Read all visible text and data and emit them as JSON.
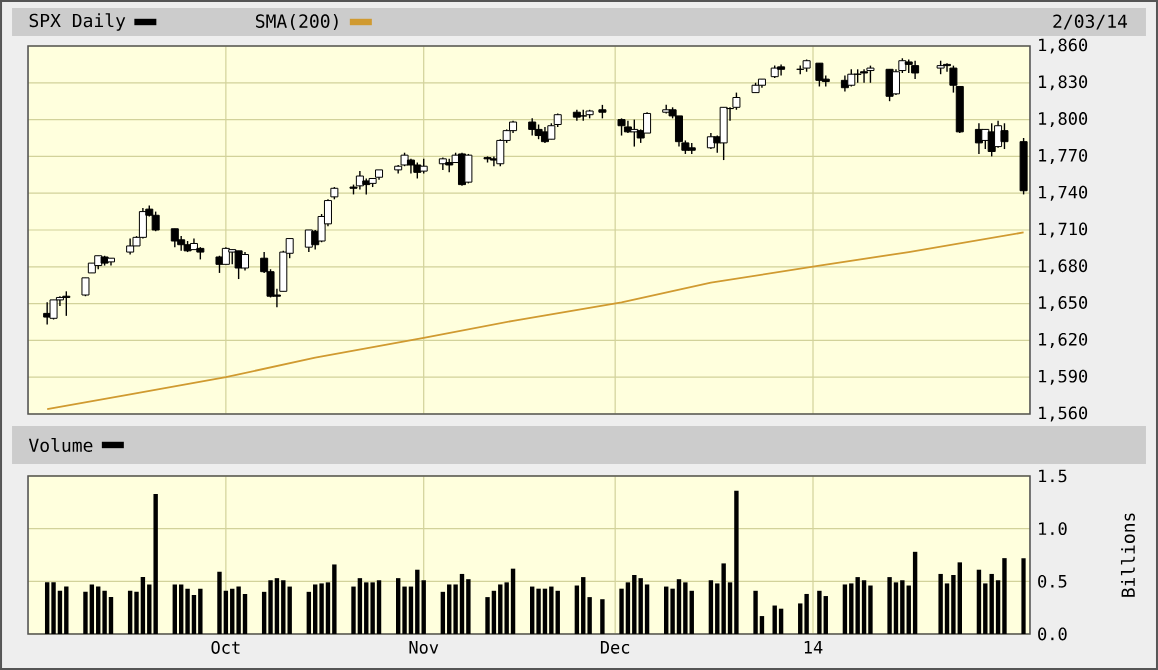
{
  "chart_data": [
    {
      "type": "candlestick",
      "xlim": [
        "2013-08-31",
        "2014-02-04"
      ],
      "ylim": [
        1560,
        1860
      ],
      "tick_labels": "y",
      "grid": true,
      "legend": "top left",
      "annotations": [
        "2/03/14"
      ],
      "xticks": [
        {
          "value": "2013-10-01",
          "label": null
        },
        {
          "value": "2013-11-01",
          "label": null
        },
        {
          "value": "2013-12-01",
          "label": null
        },
        {
          "value": "2014-01-01",
          "label": null
        }
      ],
      "yticks": [
        {
          "value": 1560,
          "label": "1,560"
        },
        {
          "value": 1590,
          "label": "1,590"
        },
        {
          "value": 1620,
          "label": "1,620"
        },
        {
          "value": 1650,
          "label": "1,650"
        },
        {
          "value": 1680,
          "label": "1,680"
        },
        {
          "value": 1710,
          "label": "1,710"
        },
        {
          "value": 1740,
          "label": "1,740"
        },
        {
          "value": 1770,
          "label": "1,770"
        },
        {
          "value": 1800,
          "label": "1,800"
        },
        {
          "value": 1830,
          "label": "1,830"
        },
        {
          "value": 1860,
          "label": "1,860"
        }
      ],
      "x": [
        "2013-09-03",
        "2013-09-04",
        "2013-09-05",
        "2013-09-06",
        "2013-09-09",
        "2013-09-10",
        "2013-09-11",
        "2013-09-12",
        "2013-09-13",
        "2013-09-16",
        "2013-09-17",
        "2013-09-18",
        "2013-09-19",
        "2013-09-20",
        "2013-09-23",
        "2013-09-24",
        "2013-09-25",
        "2013-09-26",
        "2013-09-27",
        "2013-09-30",
        "2013-10-01",
        "2013-10-02",
        "2013-10-03",
        "2013-10-04",
        "2013-10-07",
        "2013-10-08",
        "2013-10-09",
        "2013-10-10",
        "2013-10-11",
        "2013-10-14",
        "2013-10-15",
        "2013-10-16",
        "2013-10-17",
        "2013-10-18",
        "2013-10-21",
        "2013-10-22",
        "2013-10-23",
        "2013-10-24",
        "2013-10-25",
        "2013-10-28",
        "2013-10-29",
        "2013-10-30",
        "2013-10-31",
        "2013-11-01",
        "2013-11-04",
        "2013-11-05",
        "2013-11-06",
        "2013-11-07",
        "2013-11-08",
        "2013-11-11",
        "2013-11-12",
        "2013-11-13",
        "2013-11-14",
        "2013-11-15",
        "2013-11-18",
        "2013-11-19",
        "2013-11-20",
        "2013-11-21",
        "2013-11-22",
        "2013-11-25",
        "2013-11-26",
        "2013-11-27",
        "2013-11-29",
        "2013-12-02",
        "2013-12-03",
        "2013-12-04",
        "2013-12-05",
        "2013-12-06",
        "2013-12-09",
        "2013-12-10",
        "2013-12-11",
        "2013-12-12",
        "2013-12-13",
        "2013-12-16",
        "2013-12-17",
        "2013-12-18",
        "2013-12-19",
        "2013-12-20",
        "2013-12-23",
        "2013-12-24",
        "2013-12-26",
        "2013-12-27",
        "2013-12-30",
        "2013-12-31",
        "2014-01-02",
        "2014-01-03",
        "2014-01-06",
        "2014-01-07",
        "2014-01-08",
        "2014-01-09",
        "2014-01-10",
        "2014-01-13",
        "2014-01-14",
        "2014-01-15",
        "2014-01-16",
        "2014-01-17",
        "2014-01-21",
        "2014-01-22",
        "2014-01-23",
        "2014-01-24",
        "2014-01-27",
        "2014-01-28",
        "2014-01-29",
        "2014-01-30",
        "2014-01-31",
        "2014-02-03"
      ],
      "series": [
        {
          "name": "SPX Daily",
          "type": "candlestick",
          "color": "#000000",
          "ohlc": [
            [
              1642,
              1651,
              1633,
              1639
            ],
            [
              1638,
              1653,
              1637,
              1653
            ],
            [
              1653,
              1656,
              1648,
              1655
            ],
            [
              1656,
              1660,
              1640,
              1655
            ],
            [
              1657,
              1671,
              1656,
              1671
            ],
            [
              1675,
              1683,
              1675,
              1683
            ],
            [
              1681,
              1689,
              1678,
              1689
            ],
            [
              1688,
              1689,
              1681,
              1683
            ],
            [
              1684,
              1687,
              1681,
              1687
            ],
            [
              1692,
              1703,
              1690,
              1697
            ],
            [
              1697,
              1705,
              1697,
              1704
            ],
            [
              1704,
              1728,
              1703,
              1725
            ],
            [
              1727,
              1730,
              1721,
              1722
            ],
            [
              1722,
              1725,
              1709,
              1710
            ],
            [
              1711,
              1711,
              1696,
              1701
            ],
            [
              1702,
              1705,
              1693,
              1698
            ],
            [
              1698,
              1701,
              1692,
              1693
            ],
            [
              1694,
              1703,
              1694,
              1699
            ],
            [
              1695,
              1696,
              1686,
              1692
            ],
            [
              1688,
              1689,
              1675,
              1682
            ],
            [
              1682,
              1696,
              1682,
              1695
            ],
            [
              1692,
              1694,
              1682,
              1694
            ],
            [
              1693,
              1693,
              1670,
              1679
            ],
            [
              1679,
              1692,
              1677,
              1690
            ],
            [
              1687,
              1692,
              1675,
              1676
            ],
            [
              1676,
              1678,
              1655,
              1656
            ],
            [
              1657,
              1662,
              1647,
              1656
            ],
            [
              1660,
              1693,
              1660,
              1692
            ],
            [
              1691,
              1703,
              1687,
              1703
            ],
            [
              1696,
              1710,
              1692,
              1710
            ],
            [
              1709,
              1710,
              1694,
              1698
            ],
            [
              1701,
              1723,
              1700,
              1721
            ],
            [
              1715,
              1735,
              1713,
              1734
            ],
            [
              1737,
              1745,
              1735,
              1744
            ],
            [
              1745,
              1747,
              1739,
              1744
            ],
            [
              1746,
              1758,
              1743,
              1754
            ],
            [
              1750,
              1752,
              1739,
              1747
            ],
            [
              1748,
              1752,
              1745,
              1752
            ],
            [
              1753,
              1759,
              1751,
              1759
            ],
            [
              1759,
              1763,
              1756,
              1762
            ],
            [
              1763,
              1773,
              1762,
              1771
            ],
            [
              1767,
              1768,
              1756,
              1763
            ],
            [
              1763,
              1765,
              1752,
              1757
            ],
            [
              1758,
              1768,
              1756,
              1762
            ],
            [
              1764,
              1769,
              1759,
              1768
            ],
            [
              1765,
              1768,
              1757,
              1763
            ],
            [
              1765,
              1773,
              1765,
              1771
            ],
            [
              1772,
              1773,
              1746,
              1747
            ],
            [
              1749,
              1772,
              1748,
              1771
            ],
            [
              1769,
              1770,
              1765,
              1768
            ],
            [
              1768,
              1770,
              1762,
              1767
            ],
            [
              1764,
              1784,
              1762,
              1783
            ],
            [
              1783,
              1792,
              1781,
              1791
            ],
            [
              1791,
              1799,
              1789,
              1798
            ],
            [
              1798,
              1801,
              1787,
              1792
            ],
            [
              1792,
              1796,
              1784,
              1787
            ],
            [
              1790,
              1794,
              1781,
              1782
            ],
            [
              1784,
              1797,
              1784,
              1795
            ],
            [
              1796,
              1805,
              1794,
              1804
            ],
            [
              1806,
              1808,
              1799,
              1802
            ],
            [
              1803,
              1808,
              1799,
              1803
            ],
            [
              1804,
              1808,
              1801,
              1807
            ],
            [
              1808,
              1812,
              1801,
              1806
            ],
            [
              1800,
              1801,
              1787,
              1795
            ],
            [
              1794,
              1799,
              1789,
              1790
            ],
            [
              1790,
              1800,
              1778,
              1792
            ],
            [
              1791,
              1792,
              1781,
              1785
            ],
            [
              1789,
              1806,
              1789,
              1805
            ],
            [
              1806,
              1812,
              1805,
              1808
            ],
            [
              1808,
              1810,
              1801,
              1803
            ],
            [
              1803,
              1803,
              1778,
              1782
            ],
            [
              1781,
              1783,
              1772,
              1775
            ],
            [
              1777,
              1781,
              1772,
              1775
            ],
            [
              1777,
              1789,
              1776,
              1786
            ],
            [
              1786,
              1787,
              1773,
              1781
            ],
            [
              1781,
              1810,
              1767,
              1810
            ],
            [
              1809,
              1810,
              1799,
              1809
            ],
            [
              1810,
              1822,
              1808,
              1818
            ],
            [
              1822,
              1830,
              1822,
              1828
            ],
            [
              1828,
              1833,
              1826,
              1833
            ],
            [
              1835,
              1844,
              1834,
              1842
            ],
            [
              1843,
              1845,
              1836,
              1841
            ],
            [
              1841,
              1844,
              1837,
              1841
            ],
            [
              1842,
              1849,
              1839,
              1848
            ],
            [
              1846,
              1846,
              1827,
              1832
            ],
            [
              1833,
              1836,
              1827,
              1831
            ],
            [
              1832,
              1836,
              1823,
              1826
            ],
            [
              1828,
              1841,
              1827,
              1837
            ],
            [
              1837,
              1841,
              1830,
              1837
            ],
            [
              1839,
              1841,
              1830,
              1838
            ],
            [
              1840,
              1844,
              1830,
              1842
            ],
            [
              1841,
              1841,
              1815,
              1819
            ],
            [
              1821,
              1841,
              1820,
              1839
            ],
            [
              1840,
              1850,
              1838,
              1848
            ],
            [
              1847,
              1849,
              1838,
              1845
            ],
            [
              1844,
              1848,
              1833,
              1838
            ],
            [
              1842,
              1848,
              1837,
              1844
            ],
            [
              1845,
              1846,
              1839,
              1844
            ],
            [
              1842,
              1844,
              1822,
              1828
            ],
            [
              1827,
              1827,
              1789,
              1790
            ],
            [
              1792,
              1797,
              1772,
              1781
            ],
            [
              1783,
              1792,
              1776,
              1792
            ],
            [
              1790,
              1797,
              1770,
              1774
            ],
            [
              1778,
              1799,
              1777,
              1795
            ],
            [
              1791,
              1797,
              1776,
              1782
            ],
            [
              1782,
              1785,
              1739,
              1742
            ]
          ]
        },
        {
          "name": "SMA(200)",
          "type": "line",
          "color": "#d09a30",
          "x": [
            "2013-09-03",
            "2013-09-16",
            "2013-10-01",
            "2013-10-15",
            "2013-11-01",
            "2013-11-15",
            "2013-12-02",
            "2013-12-16",
            "2014-01-02",
            "2014-01-16",
            "2014-02-03"
          ],
          "values": [
            1564,
            1576,
            1590,
            1606,
            1622,
            1636,
            1651,
            1667,
            1681,
            1692,
            1708
          ]
        }
      ]
    },
    {
      "type": "bar",
      "xlim": [
        "2013-08-31",
        "2014-02-04"
      ],
      "ylim": [
        0,
        1.5
      ],
      "ylabel": "Billions",
      "grid": true,
      "legend": "top left",
      "xticks": [
        {
          "value": "2013-10-01",
          "label": "Oct"
        },
        {
          "value": "2013-11-01",
          "label": "Nov"
        },
        {
          "value": "2013-12-01",
          "label": "Dec"
        },
        {
          "value": "2014-01-01",
          "label": "14"
        }
      ],
      "yticks": [
        {
          "value": 0,
          "label": "0.0"
        },
        {
          "value": 0.5,
          "label": "0.5"
        },
        {
          "value": 1,
          "label": "1.0"
        },
        {
          "value": 1.5,
          "label": "1.5"
        }
      ],
      "x": [
        "2013-09-03",
        "2013-09-04",
        "2013-09-05",
        "2013-09-06",
        "2013-09-09",
        "2013-09-10",
        "2013-09-11",
        "2013-09-12",
        "2013-09-13",
        "2013-09-16",
        "2013-09-17",
        "2013-09-18",
        "2013-09-19",
        "2013-09-20",
        "2013-09-23",
        "2013-09-24",
        "2013-09-25",
        "2013-09-26",
        "2013-09-27",
        "2013-09-30",
        "2013-10-01",
        "2013-10-02",
        "2013-10-03",
        "2013-10-04",
        "2013-10-07",
        "2013-10-08",
        "2013-10-09",
        "2013-10-10",
        "2013-10-11",
        "2013-10-14",
        "2013-10-15",
        "2013-10-16",
        "2013-10-17",
        "2013-10-18",
        "2013-10-21",
        "2013-10-22",
        "2013-10-23",
        "2013-10-24",
        "2013-10-25",
        "2013-10-28",
        "2013-10-29",
        "2013-10-30",
        "2013-10-31",
        "2013-11-01",
        "2013-11-04",
        "2013-11-05",
        "2013-11-06",
        "2013-11-07",
        "2013-11-08",
        "2013-11-11",
        "2013-11-12",
        "2013-11-13",
        "2013-11-14",
        "2013-11-15",
        "2013-11-18",
        "2013-11-19",
        "2013-11-20",
        "2013-11-21",
        "2013-11-22",
        "2013-11-25",
        "2013-11-26",
        "2013-11-27",
        "2013-11-29",
        "2013-12-02",
        "2013-12-03",
        "2013-12-04",
        "2013-12-05",
        "2013-12-06",
        "2013-12-09",
        "2013-12-10",
        "2013-12-11",
        "2013-12-12",
        "2013-12-13",
        "2013-12-16",
        "2013-12-17",
        "2013-12-18",
        "2013-12-19",
        "2013-12-20",
        "2013-12-23",
        "2013-12-24",
        "2013-12-26",
        "2013-12-27",
        "2013-12-30",
        "2013-12-31",
        "2014-01-02",
        "2014-01-03",
        "2014-01-06",
        "2014-01-07",
        "2014-01-08",
        "2014-01-09",
        "2014-01-10",
        "2014-01-13",
        "2014-01-14",
        "2014-01-15",
        "2014-01-16",
        "2014-01-17",
        "2014-01-21",
        "2014-01-22",
        "2014-01-23",
        "2014-01-24",
        "2014-01-27",
        "2014-01-28",
        "2014-01-29",
        "2014-01-30",
        "2014-01-31",
        "2014-02-03"
      ],
      "series": [
        {
          "name": "Volume",
          "color": "#000000",
          "values": [
            0.49,
            0.49,
            0.41,
            0.45,
            0.4,
            0.47,
            0.45,
            0.41,
            0.35,
            0.41,
            0.4,
            0.54,
            0.47,
            1.33,
            0.47,
            0.47,
            0.43,
            0.37,
            0.43,
            0.59,
            0.41,
            0.43,
            0.45,
            0.38,
            0.4,
            0.51,
            0.53,
            0.51,
            0.45,
            0.4,
            0.47,
            0.48,
            0.49,
            0.66,
            0.45,
            0.53,
            0.49,
            0.49,
            0.51,
            0.53,
            0.45,
            0.45,
            0.61,
            0.51,
            0.4,
            0.47,
            0.47,
            0.57,
            0.52,
            0.35,
            0.41,
            0.47,
            0.49,
            0.62,
            0.45,
            0.43,
            0.43,
            0.45,
            0.41,
            0.46,
            0.54,
            0.35,
            0.33,
            0.43,
            0.49,
            0.56,
            0.53,
            0.47,
            0.45,
            0.43,
            0.52,
            0.49,
            0.41,
            0.51,
            0.48,
            0.67,
            0.49,
            1.36,
            0.41,
            0.17,
            0.27,
            0.24,
            0.29,
            0.38,
            0.41,
            0.36,
            0.47,
            0.48,
            0.54,
            0.51,
            0.46,
            0.54,
            0.49,
            0.51,
            0.46,
            0.78,
            0.57,
            0.48,
            0.56,
            0.68,
            0.61,
            0.48,
            0.57,
            0.51,
            0.72,
            0.72
          ]
        }
      ]
    }
  ]
}
